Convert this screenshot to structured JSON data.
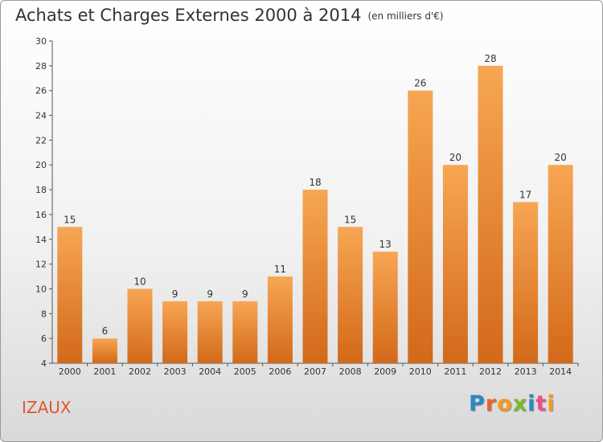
{
  "chart_title": "Achats et Charges Externes 2000 à 2014",
  "chart_unit": "(en milliers d'€)",
  "commune_name": "IZAUX",
  "logo_text": "Proxiti",
  "colors": {
    "bar_light": "#f7a653",
    "bar_dark": "#d2691a",
    "axis": "#555555",
    "grid": "#cccccc",
    "commune": "#e0572a"
  },
  "chart_data": {
    "type": "bar",
    "categories": [
      "2000",
      "2001",
      "2002",
      "2003",
      "2004",
      "2005",
      "2006",
      "2007",
      "2008",
      "2009",
      "2010",
      "2011",
      "2012",
      "2013",
      "2014"
    ],
    "values": [
      15,
      6,
      10,
      9,
      9,
      9,
      11,
      18,
      15,
      13,
      26,
      20,
      28,
      17,
      20
    ],
    "title": "Achats et Charges Externes 2000 à 2014",
    "ylim": [
      4,
      30
    ],
    "yticks": [
      4,
      6,
      8,
      10,
      12,
      14,
      16,
      18,
      20,
      22,
      24,
      26,
      28,
      30
    ],
    "grid": false,
    "data_labels": true
  }
}
